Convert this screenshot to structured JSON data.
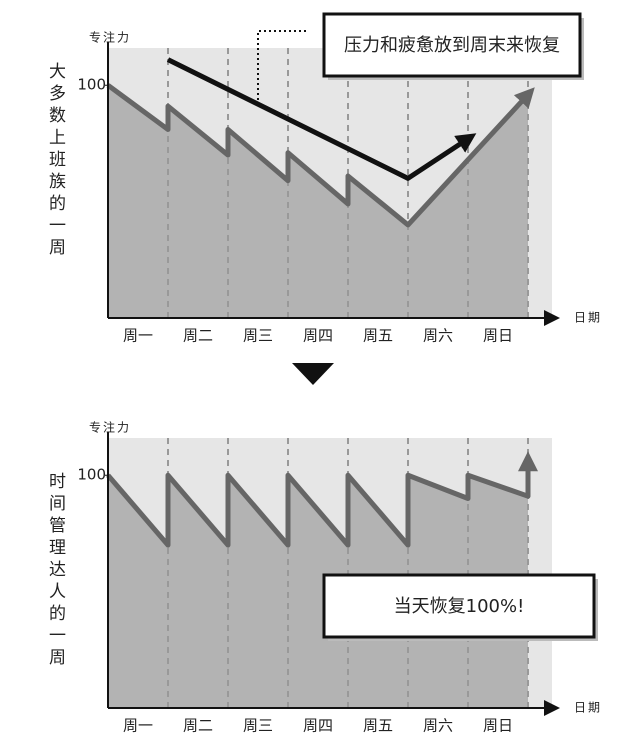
{
  "chart_data": [
    {
      "type": "line",
      "y_label": "专注力",
      "x_label": "日期",
      "side_label": "大多数上班族的一周",
      "annotation": "压力和疲惫放到周末来恢复",
      "categories": [
        "周一",
        "周二",
        "周三",
        "周四",
        "周五",
        "周六",
        "周日"
      ],
      "background": "#e6e6e6",
      "xlim": [
        0,
        7.4
      ],
      "ylim": [
        0,
        116
      ],
      "yticks": [
        100
      ],
      "series": [
        {
          "color": "#666666",
          "fill": "#b3b3b3",
          "x": [
            0,
            1,
            1,
            2,
            2,
            3,
            3,
            4,
            4,
            5,
            7
          ],
          "values": [
            100,
            81,
            91,
            70,
            81,
            59,
            71,
            49,
            61,
            40,
            96
          ]
        },
        {
          "color": "#111111",
          "x": [
            1,
            5,
            6
          ],
          "values": [
            111,
            60,
            77
          ]
        }
      ]
    },
    {
      "type": "line",
      "y_label": "专注力",
      "x_label": "日期",
      "side_label": "时间管理达人的一周",
      "annotation": "当天恢复100%!",
      "categories": [
        "周一",
        "周二",
        "周三",
        "周四",
        "周五",
        "周六",
        "周日"
      ],
      "background": "#e6e6e6",
      "xlim": [
        0,
        7.4
      ],
      "ylim": [
        0,
        116
      ],
      "yticks": [
        100
      ],
      "series": [
        {
          "color": "#666666",
          "fill": "#b3b3b3",
          "x": [
            0,
            1,
            1,
            2,
            2,
            3,
            3,
            4,
            4,
            5,
            5,
            6,
            6,
            7,
            7
          ],
          "values": [
            100,
            70,
            100,
            70,
            100,
            70,
            100,
            70,
            100,
            70,
            100,
            90,
            100,
            91,
            106
          ]
        }
      ]
    }
  ]
}
